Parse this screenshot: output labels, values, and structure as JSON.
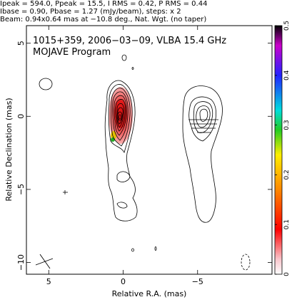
{
  "header": {
    "line1": "Ipeak = 594.0, Ppeak = 15.5, I RMS = 0.42, P RMS = 0.44",
    "line2": "Ibase = 0.90, Pbase = 1.27 (mJy/beam), steps: x 2",
    "line3": "Beam: 0.94x0.64 mas at −10.8 deg., Nat. Wgt. (no taper)"
  },
  "plot": {
    "title_line1": "1015+359, 2006−03−09, VLBA 15.4 GHz",
    "title_line2": "MOJAVE Program",
    "xlabel": "Relative R.A. (mas)",
    "ylabel": "Relative Declination (mas)",
    "xlim": [
      6.5,
      -10
    ],
    "ylim": [
      -10.8,
      6.2
    ],
    "x_ticks": [
      {
        "value": 5,
        "label": "5"
      },
      {
        "value": 0,
        "label": "0"
      },
      {
        "value": -5,
        "label": "−5"
      }
    ],
    "y_ticks": [
      {
        "value": 5,
        "label": "5"
      },
      {
        "value": 0,
        "label": "0"
      },
      {
        "value": -5,
        "label": "−5"
      },
      {
        "value": -10,
        "label": "−10"
      }
    ]
  },
  "colorbar": {
    "min": 0,
    "max": 0.5,
    "ticks": [
      {
        "value": 0.5,
        "label": "0.5"
      },
      {
        "value": 0.4,
        "label": "0.4"
      },
      {
        "value": 0.3,
        "label": "0.3"
      },
      {
        "value": 0.2,
        "label": "0.2"
      },
      {
        "value": 0.1,
        "label": "0.1"
      },
      {
        "value": 0,
        "label": "0"
      }
    ]
  },
  "colors": {
    "contour": "#000000",
    "core_fill": "#ee3333",
    "core_fill_light": "#f7a0a0",
    "jet_yellow": "#e6c000",
    "jet_green": "#22aa22",
    "dashed_contour": "#000000"
  }
}
